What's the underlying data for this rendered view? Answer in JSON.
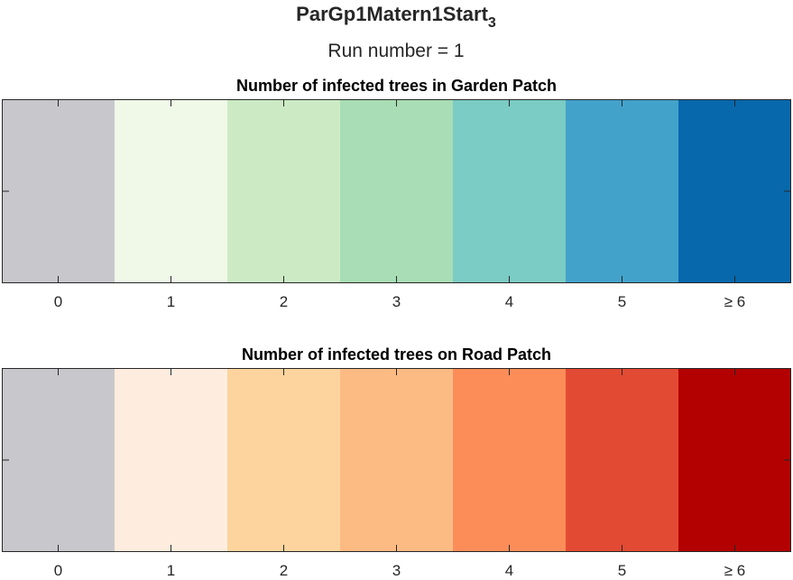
{
  "figure": {
    "title_main": "ParGp1Matern1Start",
    "title_subscript": "3",
    "subtitle": "Run number = 1"
  },
  "chart_data": [
    {
      "type": "heatmap",
      "title": "Number of infected trees in Garden Patch",
      "xlabel": "",
      "ylabel": "",
      "categories": [
        "0",
        "1",
        "2",
        "3",
        "4",
        "5",
        "≥ 6"
      ],
      "values": [
        0,
        1,
        2,
        3,
        4,
        5,
        6
      ],
      "colors": [
        "#c8c8cc",
        "#f0f9e8",
        "#ccebc5",
        "#a8ddb5",
        "#7bccc4",
        "#43a2ca",
        "#0868ac"
      ],
      "xlim": [
        -0.5,
        6.5
      ],
      "grid": false,
      "legend": "none"
    },
    {
      "type": "heatmap",
      "title": "Number of infected trees on Road Patch",
      "xlabel": "",
      "ylabel": "",
      "categories": [
        "0",
        "1",
        "2",
        "3",
        "4",
        "5",
        "≥ 6"
      ],
      "values": [
        0,
        1,
        2,
        3,
        4,
        5,
        6
      ],
      "colors": [
        "#c8c8cc",
        "#feedde",
        "#fdd49e",
        "#fdbb84",
        "#fc8d59",
        "#e34a33",
        "#b30000"
      ],
      "xlim": [
        -0.5,
        6.5
      ],
      "grid": false,
      "legend": "none"
    }
  ]
}
